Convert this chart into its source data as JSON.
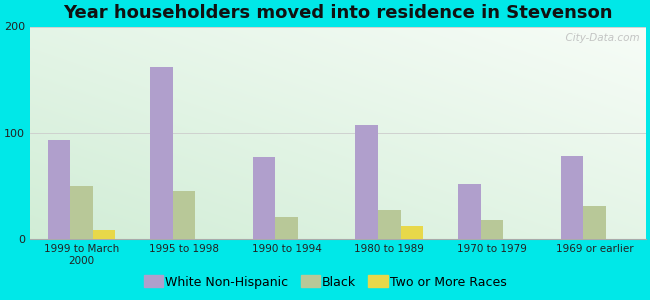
{
  "title": "Year householders moved into residence in Stevenson",
  "categories": [
    "1999 to March\n2000",
    "1995 to 1998",
    "1990 to 1994",
    "1980 to 1989",
    "1970 to 1979",
    "1969 or earlier"
  ],
  "white_non_hispanic": [
    93,
    162,
    77,
    107,
    52,
    78
  ],
  "black": [
    50,
    45,
    21,
    28,
    18,
    31
  ],
  "two_or_more_races": [
    9,
    0,
    0,
    13,
    0,
    0
  ],
  "white_color": "#b09fcc",
  "black_color": "#b8c898",
  "two_color": "#e8d84a",
  "bg_color": "#00e8e8",
  "ylim": [
    0,
    200
  ],
  "yticks": [
    0,
    100,
    200
  ],
  "bar_width": 0.22,
  "title_fontsize": 13,
  "legend_fontsize": 9,
  "watermark": "  City-Data.com"
}
